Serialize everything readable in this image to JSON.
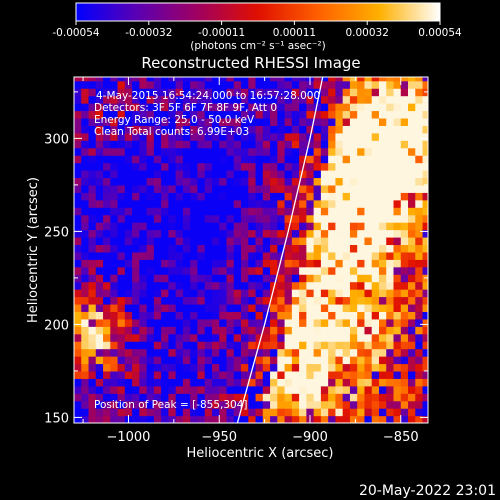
{
  "colorbar": {
    "ticks": [
      "-0.00054",
      "-0.00032",
      "-0.00011",
      "0.00011",
      "0.00032",
      "0.00054"
    ],
    "units": "(photons cm⁻² s⁻¹ asec⁻²)"
  },
  "chart_data": {
    "type": "heatmap",
    "title": "Reconstructed RHESSI Image",
    "xlabel": "Heliocentric X (arcsec)",
    "ylabel": "Heliocentric Y (arcsec)",
    "xlim": [
      -1030,
      -835
    ],
    "ylim": [
      147,
      333
    ],
    "x_ticks": [
      -1000,
      -950,
      -900,
      -850
    ],
    "x_tick_labels": [
      "−1000",
      "−950",
      "−900",
      "−850"
    ],
    "y_ticks": [
      150,
      200,
      250,
      300
    ],
    "y_tick_labels": [
      "150",
      "200",
      "250",
      "300"
    ],
    "value_range": [
      -0.00054,
      0.00054
    ],
    "colormap": [
      "#0000ff",
      "#5a00b4",
      "#a00060",
      "#e01000",
      "#ff6000",
      "#ffb000",
      "#ffffff"
    ],
    "annotations": [
      "4-May-2015 16:54:24.000 to 16:57:28.000",
      "Detectors: 3F 5F 6F 7F 8F 9F, Att 0",
      "Energy Range: 25.0 - 50.0 keV",
      "Clean    Total counts: 6.99E+03"
    ],
    "peak_label": "Position of Peak = [-855,304]",
    "peak_position": [
      -855,
      304
    ],
    "limb_curve": [
      [
        -940,
        147
      ],
      [
        -925,
        200
      ],
      [
        -912,
        250
      ],
      [
        -900,
        300
      ],
      [
        -893,
        333
      ]
    ]
  },
  "footer": {
    "date": "20-May-2022 23:01"
  }
}
